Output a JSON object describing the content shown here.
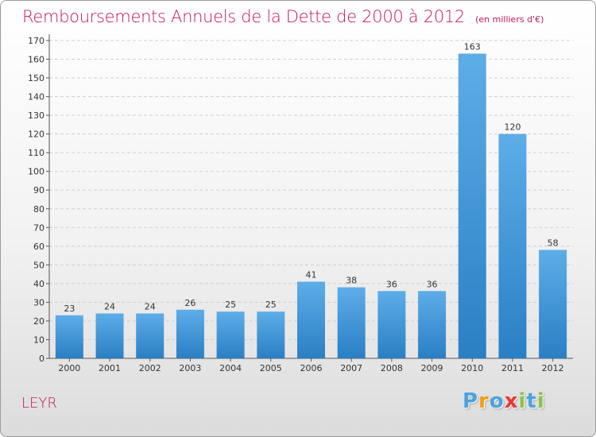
{
  "header": {
    "title": "Remboursements Annuels de la Dette de 2000 à 2012",
    "unit": "(en milliers d'€)"
  },
  "footer": {
    "commune": "LEYR",
    "brand": "Proxiti",
    "brand_letters": [
      {
        "char": "P",
        "color": "#4aa3df"
      },
      {
        "char": "r",
        "color": "#f39c12"
      },
      {
        "char": "o",
        "color": "#4aa3df"
      },
      {
        "char": "x",
        "color": "#e53935"
      },
      {
        "char": "i",
        "color": "#8bc34a"
      },
      {
        "char": "t",
        "color": "#4aa3df"
      },
      {
        "char": "i",
        "color": "#8bc34a"
      }
    ]
  },
  "colors": {
    "accent": "#c2185b",
    "bar_light": "#5dade8",
    "bar_dark": "#2a7fc4",
    "grid": "#cfcfcf"
  },
  "chart_data": {
    "type": "bar",
    "categories": [
      "2000",
      "2001",
      "2002",
      "2003",
      "2004",
      "2005",
      "2006",
      "2007",
      "2008",
      "2009",
      "2010",
      "2011",
      "2012"
    ],
    "values": [
      23,
      24,
      24,
      26,
      25,
      25,
      41,
      38,
      36,
      36,
      163,
      120,
      58
    ],
    "title": "Remboursements Annuels de la Dette de 2000 à 2012",
    "xlabel": "",
    "ylabel": "",
    "ylim": [
      0,
      170
    ],
    "yticks": [
      0,
      10,
      20,
      30,
      40,
      50,
      60,
      70,
      80,
      90,
      100,
      110,
      120,
      130,
      140,
      150,
      160,
      170
    ],
    "grid": true,
    "data_labels": true
  }
}
